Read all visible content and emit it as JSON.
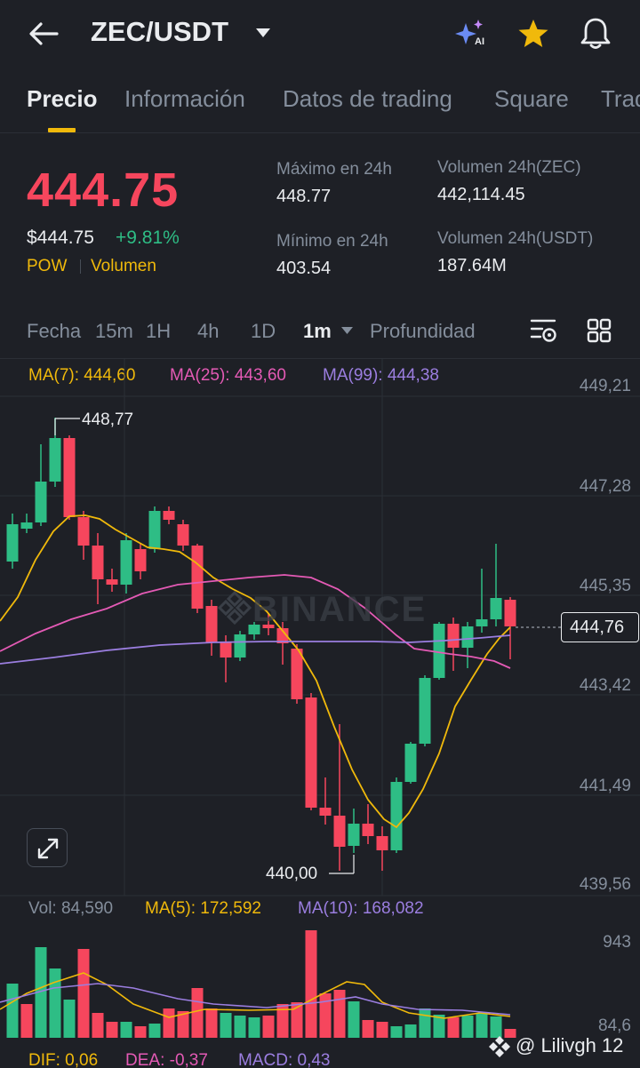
{
  "header": {
    "back_icon": "arrow-left-icon",
    "pair": "ZEC/USDT",
    "ai_icon": "ai-sparkle-icon",
    "star_icon": "star-icon",
    "bell_icon": "bell-icon"
  },
  "tabs": [
    {
      "label": "Precio",
      "active": true
    },
    {
      "label": "Información"
    },
    {
      "label": "Datos de trading"
    },
    {
      "label": "Square"
    },
    {
      "label": "Trad"
    }
  ],
  "price": {
    "last": "444.75",
    "usd": "$444.75",
    "change": "+9.81%",
    "tag1": "POW",
    "tag2": "Volumen"
  },
  "stats": {
    "high_label": "Máximo en 24h",
    "high_value": "448.77",
    "low_label": "Mínimo en 24h",
    "low_value": "403.54",
    "vol_base_label": "Volumen 24h(ZEC)",
    "vol_base_value": "442,114.45",
    "vol_quote_label": "Volumen 24h(USDT)",
    "vol_quote_value": "187.64M"
  },
  "intervals": {
    "fecha": "Fecha",
    "i15m": "15m",
    "i1h": "1H",
    "i4h": "4h",
    "i1d": "1D",
    "i1m": "1m",
    "depth": "Profundidad"
  },
  "ma": {
    "ma7": "MA(7): 444,60",
    "ma25": "MA(25): 443,60",
    "ma99": "MA(99): 444,38"
  },
  "axis": {
    "p1": "449,21",
    "p2": "447,28",
    "p3": "445,35",
    "p4": "443,42",
    "p5": "441,49",
    "p6": "439,56",
    "current": "444,76"
  },
  "annotations": {
    "high": "448,77",
    "low": "440,00"
  },
  "watermark": "BINANCE",
  "volume": {
    "vol": "Vol: 84,590",
    "ma5": "MA(5): 172,592",
    "ma10": "MA(10): 168,082",
    "axis_top": "943",
    "axis_bottom": "84,6"
  },
  "macd": {
    "dif": "DIF: 0,06",
    "dea": "DEA: -0,37",
    "macd": "MACD: 0,43"
  },
  "footer": {
    "user": "@ Lilivgh 12"
  },
  "colors": {
    "up": "#2ebd85",
    "down": "#f6465d",
    "accent": "#f0b90b",
    "ma7": "#f0b90b",
    "ma25": "#e45ab5",
    "ma99": "#9b7ee0"
  }
}
